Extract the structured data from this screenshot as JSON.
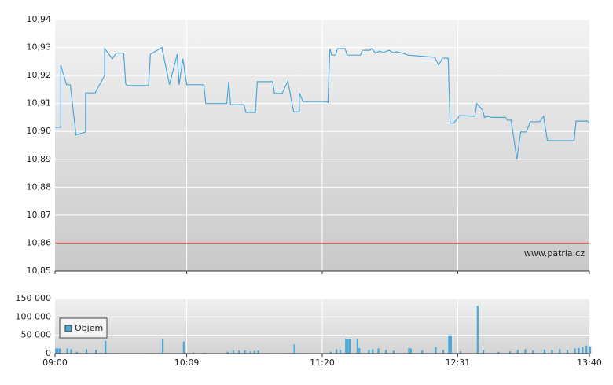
{
  "chart_data": [
    {
      "type": "line",
      "color": "#4aa8d8",
      "x": [
        "09:00",
        "09:03",
        "09:03",
        "09:06",
        "09:08",
        "09:11",
        "09:16",
        "09:16",
        "09:21",
        "09:26",
        "09:26",
        "09:30",
        "09:32",
        "09:36",
        "09:37",
        "09:38",
        "09:49",
        "09:50",
        "09:56",
        "10:00",
        "10:04",
        "10:05",
        "10:07",
        "10:09",
        "10:18",
        "10:19",
        "10:30",
        "10:31",
        "10:32",
        "10:39",
        "10:40",
        "10:45",
        "10:46",
        "10:54",
        "10:55",
        "10:59",
        "11:02",
        "11:05",
        "11:08",
        "11:08",
        "11:10",
        "11:22",
        "11:23",
        "11:24",
        "11:25",
        "11:27",
        "11:28",
        "11:32",
        "11:33",
        "11:40",
        "11:41",
        "11:45",
        "11:46",
        "11:48",
        "11:50",
        "11:52",
        "11:55",
        "11:57",
        "11:59",
        "12:02",
        "12:05",
        "12:19",
        "12:21",
        "12:23",
        "12:26",
        "12:27",
        "12:29",
        "12:32",
        "12:40",
        "12:41",
        "12:44",
        "12:45",
        "12:47",
        "12:49",
        "12:56",
        "12:57",
        "12:59",
        "13:02",
        "13:04",
        "13:07",
        "13:09",
        "13:14",
        "13:16",
        "13:18",
        "13:32",
        "13:33",
        "13:39",
        "13:40"
      ],
      "values": [
        10.9015,
        10.9015,
        10.9237,
        10.9167,
        10.9167,
        10.8987,
        10.8998,
        10.9138,
        10.9138,
        10.92,
        10.9296,
        10.926,
        10.928,
        10.928,
        10.917,
        10.9164,
        10.9164,
        10.9276,
        10.93,
        10.9167,
        10.9276,
        10.9167,
        10.926,
        10.9167,
        10.9167,
        10.91,
        10.91,
        10.9178,
        10.9096,
        10.9096,
        10.9068,
        10.9068,
        10.9178,
        10.9178,
        10.9136,
        10.9136,
        10.918,
        10.907,
        10.907,
        10.9138,
        10.9107,
        10.9107,
        10.9104,
        10.9296,
        10.9273,
        10.9273,
        10.9296,
        10.9296,
        10.9273,
        10.9273,
        10.929,
        10.929,
        10.9296,
        10.928,
        10.9287,
        10.9282,
        10.929,
        10.9282,
        10.9285,
        10.928,
        10.9273,
        10.9265,
        10.9237,
        10.9262,
        10.9262,
        10.903,
        10.903,
        10.9057,
        10.9054,
        10.91,
        10.9077,
        10.905,
        10.9054,
        10.905,
        10.905,
        10.904,
        10.904,
        10.89,
        10.8998,
        10.8998,
        10.9035,
        10.9035,
        10.9054,
        10.8967,
        10.8967,
        10.9037,
        10.9037,
        10.903
      ],
      "ylim": [
        10.85,
        10.94
      ],
      "yticks": [
        {
          "value": 10.85,
          "label": "10,85"
        },
        {
          "value": 10.86,
          "label": "10,86"
        },
        {
          "value": 10.87,
          "label": "10,87"
        },
        {
          "value": 10.88,
          "label": "10,88"
        },
        {
          "value": 10.89,
          "label": "10,89"
        },
        {
          "value": 10.9,
          "label": "10,90"
        },
        {
          "value": 10.91,
          "label": "10,91"
        },
        {
          "value": 10.92,
          "label": "10,92"
        },
        {
          "value": 10.93,
          "label": "10,93"
        },
        {
          "value": 10.94,
          "label": "10,94"
        }
      ],
      "reference_line": 10.86,
      "reference_color": "#e8645a",
      "annotation": "www.patria.cz",
      "grid": true
    },
    {
      "type": "bar",
      "x": [
        "09:00",
        "09:01",
        "09:02",
        "09:06",
        "09:08",
        "09:11",
        "09:16",
        "09:21",
        "09:26",
        "09:56",
        "10:07",
        "10:12",
        "10:18",
        "10:30",
        "10:33",
        "10:36",
        "10:39",
        "10:42",
        "10:44",
        "10:46",
        "11:05",
        "11:24",
        "11:27",
        "11:29",
        "11:32",
        "11:33",
        "11:34",
        "11:38",
        "11:39",
        "11:44",
        "11:46",
        "11:49",
        "11:53",
        "11:57",
        "12:05",
        "12:06",
        "12:12",
        "12:19",
        "12:23",
        "12:26",
        "12:27",
        "12:32",
        "12:41",
        "12:44",
        "12:52",
        "12:58",
        "13:02",
        "13:06",
        "13:10",
        "13:16",
        "13:20",
        "13:24",
        "13:28",
        "13:32",
        "13:34",
        "13:36",
        "13:38",
        "13:40"
      ],
      "series": [
        {
          "name": "Objem",
          "color": "#4aa8d8",
          "values": [
            14000,
            14000,
            14000,
            14000,
            12000,
            5000,
            12000,
            10000,
            35000,
            40000,
            33000,
            3000,
            2000,
            5000,
            9000,
            8000,
            9000,
            6000,
            7000,
            8000,
            25000,
            5000,
            12000,
            10000,
            40000,
            40000,
            40000,
            40000,
            15000,
            10000,
            12000,
            14000,
            10000,
            8000,
            15000,
            14000,
            9000,
            18000,
            10000,
            50000,
            50000,
            6000,
            130000,
            10000,
            5000,
            6000,
            10000,
            12000,
            9000,
            11000,
            10000,
            12000,
            10000,
            14000,
            15000,
            18000,
            22000,
            20000
          ]
        }
      ],
      "xlim": [
        "09:00",
        "13:40"
      ],
      "xticks": [
        "09:00",
        "10:09",
        "11:20",
        "12:31",
        "13:40"
      ],
      "ylim": [
        0,
        150000
      ],
      "yticks": [
        0,
        {
          "value": 50000,
          "label": "50 000"
        },
        {
          "value": 100000,
          "label": "100 000"
        },
        {
          "value": 150000,
          "label": "150 000"
        }
      ],
      "legend": "top-left",
      "grid": true
    }
  ]
}
